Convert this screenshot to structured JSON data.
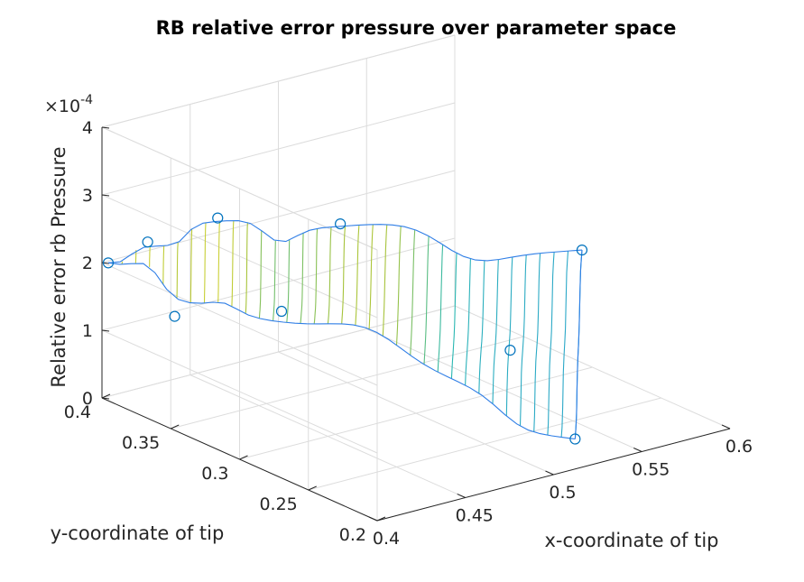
{
  "chart_data": {
    "type": "surface",
    "title": "RB relative error pressure over parameter space",
    "xlabel": "x-coordinate of tip",
    "ylabel": "y-coordinate of tip",
    "zlabel": "Relative error rb Pressure",
    "z_exponent": "×10",
    "z_exponent_power": "-4",
    "xlim": [
      0.4,
      0.6
    ],
    "ylim": [
      0.2,
      0.4
    ],
    "zlim": [
      0,
      4
    ],
    "xticks": [
      "0.4",
      "0.45",
      "0.5",
      "0.55",
      "0.6"
    ],
    "yticks": [
      "0.2",
      "0.25",
      "0.3",
      "0.35",
      "0.4"
    ],
    "zticks": [
      "0",
      "1",
      "2",
      "3",
      "4"
    ],
    "grid": true,
    "colormap": [
      "#3e26a8",
      "#2e87f7",
      "#2ab9b0",
      "#a6c33b",
      "#f9e12f"
    ],
    "sample_points": [
      {
        "x": 0.402,
        "y": 0.398,
        "z": 2.0
      },
      {
        "x": 0.41,
        "y": 0.36,
        "z": 1.5
      },
      {
        "x": 0.422,
        "y": 0.395,
        "z": 2.2
      },
      {
        "x": 0.45,
        "y": 0.38,
        "z": 2.5
      },
      {
        "x": 0.455,
        "y": 0.34,
        "z": 1.45
      },
      {
        "x": 0.5,
        "y": 0.355,
        "z": 2.3
      },
      {
        "x": 0.53,
        "y": 0.27,
        "z": 1.0
      },
      {
        "x": 0.52,
        "y": 0.21,
        "z": 0.3
      },
      {
        "x": 0.598,
        "y": 0.305,
        "z": 1.7
      }
    ]
  }
}
